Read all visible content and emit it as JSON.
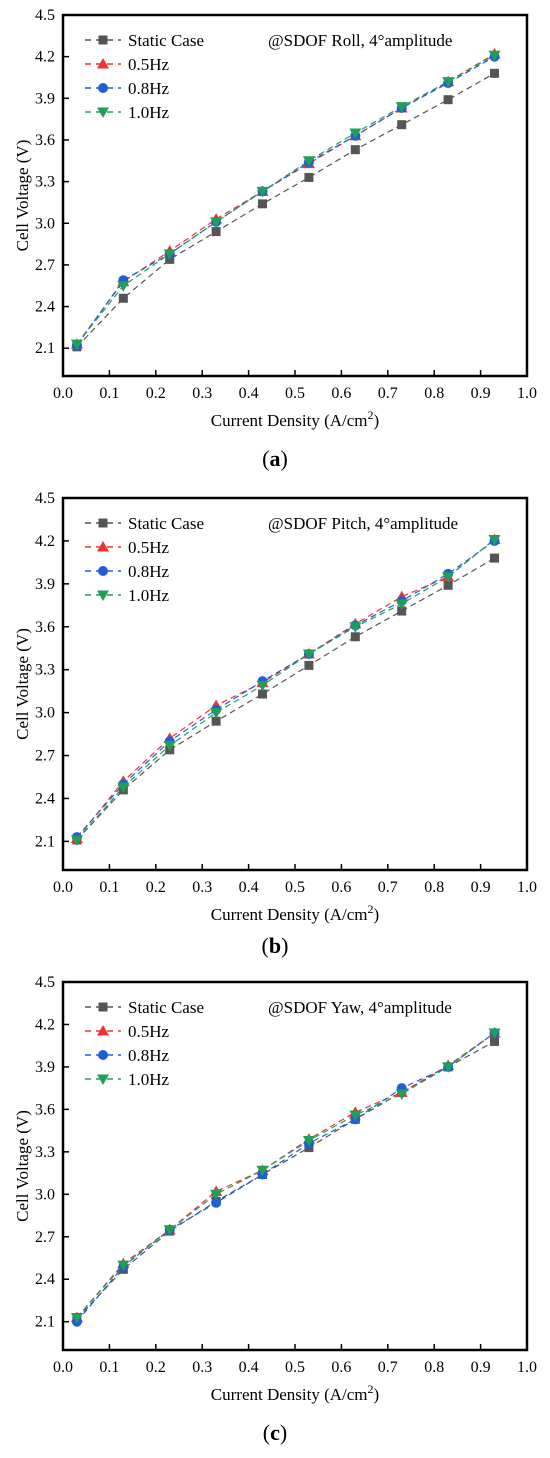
{
  "chart_data": [
    {
      "type": "line",
      "panel_label": "a",
      "annotation": "@SDOF Roll, 4°amplitude",
      "xlabel": "Current Density (A/cm",
      "xlabel_sup": "2",
      "xlabel_end": ")",
      "ylabel": "Cell Voltage (V)",
      "xlim": [
        0.0,
        1.0
      ],
      "ylim": [
        1.9,
        4.5
      ],
      "xticks": [
        "0.0",
        "0.1",
        "0.2",
        "0.3",
        "0.4",
        "0.5",
        "0.6",
        "0.7",
        "0.8",
        "0.9",
        "1.0"
      ],
      "yticks": [
        "2.1",
        "2.4",
        "2.7",
        "3.0",
        "3.3",
        "3.6",
        "3.9",
        "4.2",
        "4.5"
      ],
      "legend_position": "top-left",
      "x": [
        0.03,
        0.13,
        0.23,
        0.33,
        0.43,
        0.53,
        0.63,
        0.73,
        0.83,
        0.93
      ],
      "series": [
        {
          "name": "Static Case",
          "color": "#555555",
          "marker": "square",
          "values": [
            2.11,
            2.46,
            2.74,
            2.94,
            3.14,
            3.33,
            3.53,
            3.71,
            3.89,
            4.08
          ]
        },
        {
          "name": "0.5Hz",
          "color": "#ee3333",
          "marker": "triangle-up",
          "values": [
            2.13,
            2.58,
            2.8,
            3.03,
            3.23,
            3.43,
            3.63,
            3.83,
            4.02,
            4.22
          ]
        },
        {
          "name": "0.8Hz",
          "color": "#1f5fd6",
          "marker": "circle",
          "values": [
            2.12,
            2.59,
            2.78,
            3.01,
            3.23,
            3.44,
            3.63,
            3.83,
            4.01,
            4.2
          ]
        },
        {
          "name": "1.0Hz",
          "color": "#1fa05a",
          "marker": "triangle-down",
          "values": [
            2.13,
            2.55,
            2.78,
            3.01,
            3.23,
            3.45,
            3.65,
            3.84,
            4.02,
            4.21
          ]
        }
      ]
    },
    {
      "type": "line",
      "panel_label": "b",
      "annotation": "@SDOF Pitch, 4°amplitude",
      "xlabel": "Current Density (A/cm",
      "xlabel_sup": "2",
      "xlabel_end": ")",
      "ylabel": "Cell Voltage (V)",
      "xlim": [
        0.0,
        1.0
      ],
      "ylim": [
        1.9,
        4.5
      ],
      "xticks": [
        "0.0",
        "0.1",
        "0.2",
        "0.3",
        "0.4",
        "0.5",
        "0.6",
        "0.7",
        "0.8",
        "0.9",
        "1.0"
      ],
      "yticks": [
        "2.1",
        "2.4",
        "2.7",
        "3.0",
        "3.3",
        "3.6",
        "3.9",
        "4.2",
        "4.5"
      ],
      "legend_position": "top-left",
      "x": [
        0.03,
        0.13,
        0.23,
        0.33,
        0.43,
        0.53,
        0.63,
        0.73,
        0.83,
        0.93
      ],
      "series": [
        {
          "name": "Static Case",
          "color": "#555555",
          "marker": "square",
          "values": [
            2.11,
            2.46,
            2.74,
            2.94,
            3.13,
            3.33,
            3.53,
            3.71,
            3.89,
            4.08
          ]
        },
        {
          "name": "0.5Hz",
          "color": "#ee3333",
          "marker": "triangle-up",
          "values": [
            2.12,
            2.52,
            2.82,
            3.05,
            3.21,
            3.41,
            3.62,
            3.81,
            3.95,
            4.21
          ]
        },
        {
          "name": "0.8Hz",
          "color": "#1f5fd6",
          "marker": "circle",
          "values": [
            2.13,
            2.5,
            2.8,
            3.02,
            3.22,
            3.41,
            3.61,
            3.78,
            3.97,
            4.2
          ]
        },
        {
          "name": "1.0Hz",
          "color": "#1fa05a",
          "marker": "triangle-down",
          "values": [
            2.11,
            2.48,
            2.77,
            3.0,
            3.19,
            3.41,
            3.6,
            3.76,
            3.95,
            4.21
          ]
        }
      ]
    },
    {
      "type": "line",
      "panel_label": "c",
      "annotation": "@SDOF Yaw, 4°amplitude",
      "xlabel": "Current Density (A/cm",
      "xlabel_sup": "2",
      "xlabel_end": ")",
      "ylabel": "Cell Voltage (V)",
      "xlim": [
        0.0,
        1.0
      ],
      "ylim": [
        1.9,
        4.5
      ],
      "xticks": [
        "0.0",
        "0.1",
        "0.2",
        "0.3",
        "0.4",
        "0.5",
        "0.6",
        "0.7",
        "0.8",
        "0.9",
        "1.0"
      ],
      "yticks": [
        "2.1",
        "2.4",
        "2.7",
        "3.0",
        "3.3",
        "3.6",
        "3.9",
        "4.2",
        "4.5"
      ],
      "legend_position": "top-left",
      "x": [
        0.03,
        0.13,
        0.23,
        0.33,
        0.43,
        0.53,
        0.63,
        0.73,
        0.83,
        0.93
      ],
      "series": [
        {
          "name": "Static Case",
          "color": "#555555",
          "marker": "square",
          "values": [
            2.12,
            2.47,
            2.74,
            2.95,
            3.14,
            3.33,
            3.53,
            3.72,
            3.9,
            4.08
          ]
        },
        {
          "name": "0.5Hz",
          "color": "#ee3333",
          "marker": "triangle-up",
          "values": [
            2.13,
            2.51,
            2.75,
            3.02,
            3.17,
            3.39,
            3.58,
            3.72,
            3.91,
            4.14
          ]
        },
        {
          "name": "0.8Hz",
          "color": "#1f5fd6",
          "marker": "circle",
          "values": [
            2.1,
            2.49,
            2.75,
            2.94,
            3.14,
            3.36,
            3.53,
            3.75,
            3.9,
            4.14
          ]
        },
        {
          "name": "1.0Hz",
          "color": "#1fa05a",
          "marker": "triangle-down",
          "values": [
            2.13,
            2.5,
            2.75,
            3.0,
            3.17,
            3.38,
            3.56,
            3.71,
            3.9,
            4.14
          ]
        }
      ]
    }
  ]
}
